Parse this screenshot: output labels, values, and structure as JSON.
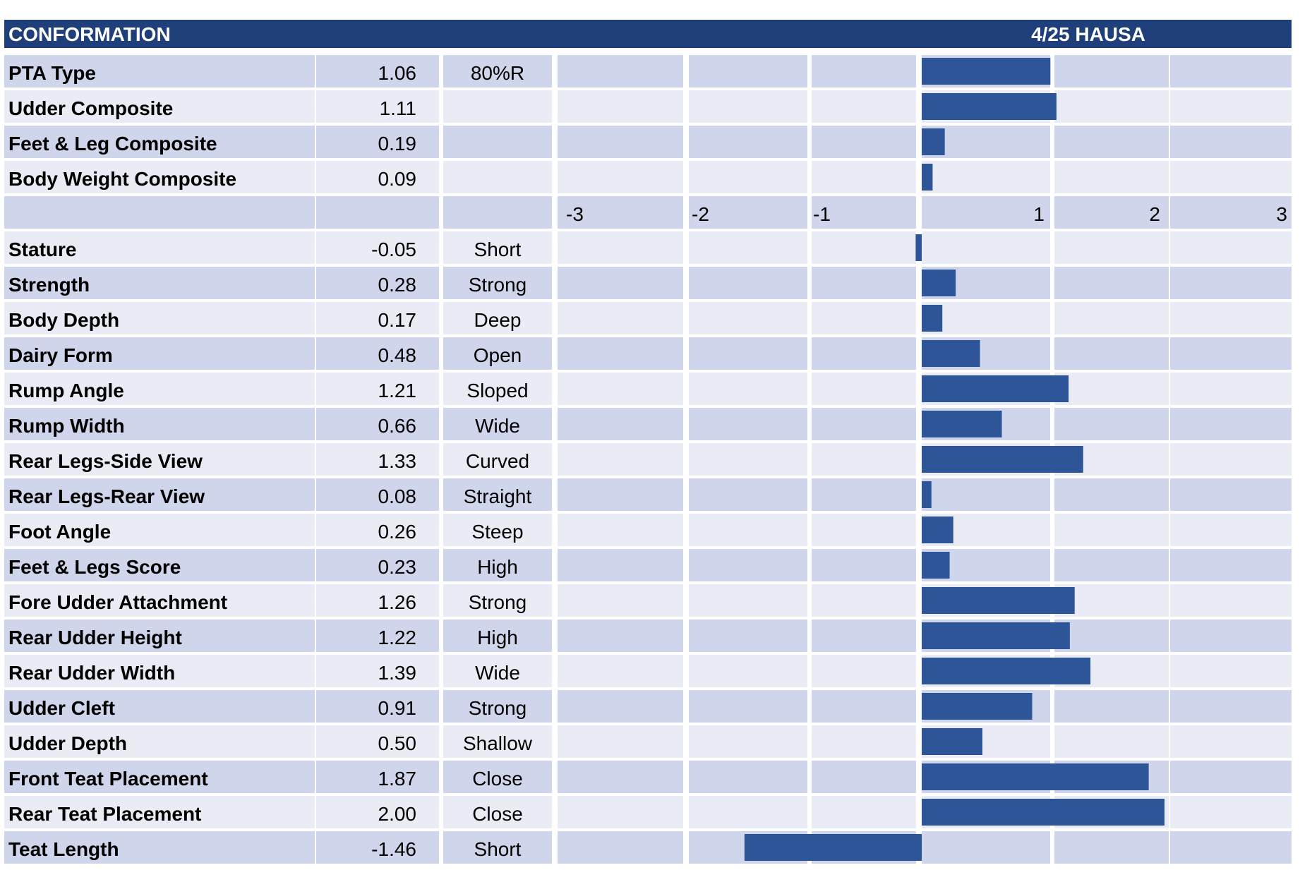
{
  "header": {
    "title": "CONFORMATION",
    "evaluation": "4/25 HAUSA"
  },
  "colors": {
    "header_bg": "#1f3f7a",
    "row_dark": "#cfd5ea",
    "row_light": "#e9ecf5",
    "bar": "#2e5597",
    "text": "#000000"
  },
  "chart_data": {
    "type": "bar",
    "orientation": "horizontal",
    "xlim": [
      -3,
      3
    ],
    "tick_labels": [
      "-3",
      "-2",
      "-1",
      "1",
      "2",
      "3"
    ],
    "composites": [
      {
        "trait": "PTA Type",
        "value": 1.06,
        "value_text": "1.06",
        "note": "80%R"
      },
      {
        "trait": "Udder Composite",
        "value": 1.11,
        "value_text": "1.11",
        "note": ""
      },
      {
        "trait": "Feet & Leg Composite",
        "value": 0.19,
        "value_text": "0.19",
        "note": ""
      },
      {
        "trait": "Body Weight Composite",
        "value": 0.09,
        "value_text": "0.09",
        "note": ""
      }
    ],
    "traits": [
      {
        "trait": "Stature",
        "value": -0.05,
        "value_text": "-0.05",
        "note": "Short"
      },
      {
        "trait": "Strength",
        "value": 0.28,
        "value_text": "0.28",
        "note": "Strong"
      },
      {
        "trait": "Body Depth",
        "value": 0.17,
        "value_text": "0.17",
        "note": "Deep"
      },
      {
        "trait": "Dairy Form",
        "value": 0.48,
        "value_text": "0.48",
        "note": "Open"
      },
      {
        "trait": "Rump Angle",
        "value": 1.21,
        "value_text": "1.21",
        "note": "Sloped"
      },
      {
        "trait": "Rump Width",
        "value": 0.66,
        "value_text": "0.66",
        "note": "Wide"
      },
      {
        "trait": "Rear Legs-Side View",
        "value": 1.33,
        "value_text": "1.33",
        "note": "Curved"
      },
      {
        "trait": "Rear Legs-Rear View",
        "value": 0.08,
        "value_text": "0.08",
        "note": "Straight"
      },
      {
        "trait": "Foot Angle",
        "value": 0.26,
        "value_text": "0.26",
        "note": "Steep"
      },
      {
        "trait": "Feet & Legs Score",
        "value": 0.23,
        "value_text": "0.23",
        "note": "High"
      },
      {
        "trait": "Fore Udder Attachment",
        "value": 1.26,
        "value_text": "1.26",
        "note": "Strong"
      },
      {
        "trait": "Rear Udder Height",
        "value": 1.22,
        "value_text": "1.22",
        "note": "High"
      },
      {
        "trait": "Rear Udder Width",
        "value": 1.39,
        "value_text": "1.39",
        "note": "Wide"
      },
      {
        "trait": "Udder Cleft",
        "value": 0.91,
        "value_text": "0.91",
        "note": "Strong"
      },
      {
        "trait": "Udder Depth",
        "value": 0.5,
        "value_text": "0.50",
        "note": "Shallow"
      },
      {
        "trait": "Front Teat Placement",
        "value": 1.87,
        "value_text": "1.87",
        "note": "Close"
      },
      {
        "trait": "Rear Teat Placement",
        "value": 2.0,
        "value_text": "2.00",
        "note": "Close"
      },
      {
        "trait": "Teat Length",
        "value": -1.46,
        "value_text": "-1.46",
        "note": "Short"
      }
    ]
  }
}
